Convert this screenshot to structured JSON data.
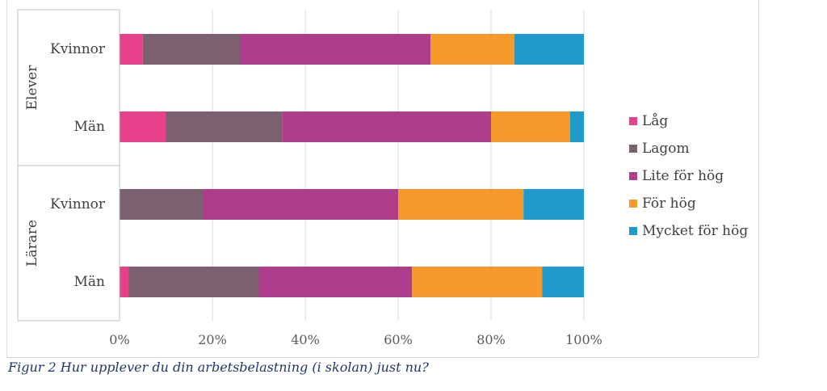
{
  "chart_data": {
    "type": "bar",
    "orientation": "horizontal",
    "stacked": "percent",
    "groups": [
      {
        "label": "Elever",
        "categories": [
          "Kvinnor",
          "Män"
        ]
      },
      {
        "label": "Lärare",
        "categories": [
          "Kvinnor",
          "Män"
        ]
      }
    ],
    "categories": [
      "Elever / Kvinnor",
      "Elever / Män",
      "Lärare / Kvinnor",
      "Lärare / Män"
    ],
    "series": [
      {
        "name": "Låg",
        "color": "#e8418b",
        "values": [
          5,
          10,
          0,
          2
        ]
      },
      {
        "name": "Lagom",
        "color": "#7b6070",
        "values": [
          21,
          25,
          18,
          28
        ]
      },
      {
        "name": "Lite för hög",
        "color": "#b03c8c",
        "values": [
          41,
          45,
          42,
          33
        ]
      },
      {
        "name": "För hög",
        "color": "#f79a2c",
        "values": [
          18,
          17,
          27,
          28
        ]
      },
      {
        "name": "Mycket för hög",
        "color": "#1e9acb",
        "values": [
          15,
          3,
          13,
          9
        ]
      }
    ],
    "x_ticks": [
      "0%",
      "20%",
      "40%",
      "60%",
      "80%",
      "100%"
    ],
    "xlim": [
      0,
      100
    ],
    "grid": "vertical",
    "legend_position": "right"
  },
  "caption": "Figur 2 Hur upplever du din arbetsbelastning (i skolan) just nu?"
}
